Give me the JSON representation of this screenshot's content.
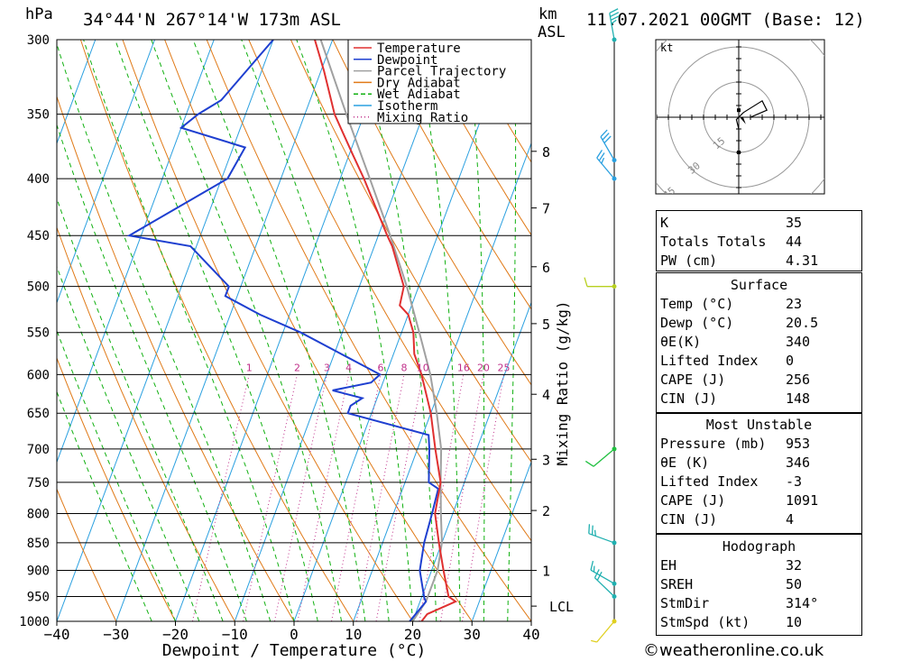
{
  "header": {
    "pressure_unit": "hPa",
    "location": "34°44'N  267°14'W  173m  ASL",
    "height_unit": "km",
    "height_unit2": "ASL",
    "datetime": "11.07.2021  00GMT  (Base: 12)"
  },
  "chart_data": {
    "type": "skew-t log-p",
    "xlabel": "Dewpoint / Temperature (°C)",
    "ylabel_left": "hPa",
    "ylabel_right": "Mixing Ratio (g/kg)",
    "xlim": [
      -40,
      40
    ],
    "ylim_hpa": [
      1000,
      300
    ],
    "x_ticks": [
      -40,
      -30,
      -20,
      -10,
      0,
      10,
      20,
      30,
      40
    ],
    "x_tick_labels": [
      "−40",
      "−30",
      "−20",
      "−10",
      "0",
      "10",
      "20",
      "30",
      "40"
    ],
    "pressure_ticks": [
      300,
      350,
      400,
      450,
      500,
      550,
      600,
      650,
      700,
      750,
      800,
      850,
      900,
      950,
      1000
    ],
    "km_ticks": [
      {
        "km": 8,
        "hpa": 378
      },
      {
        "km": 7,
        "hpa": 425
      },
      {
        "km": 6,
        "hpa": 480
      },
      {
        "km": 5,
        "hpa": 540
      },
      {
        "km": 4,
        "hpa": 625
      },
      {
        "km": 3,
        "hpa": 715
      },
      {
        "km": 2,
        "hpa": 795
      },
      {
        "km": 1,
        "hpa": 900
      }
    ],
    "lcl": {
      "label": "LCL",
      "hpa": 960
    },
    "mixing_ratio_labels": [
      "1",
      "2",
      "3",
      "4",
      "6",
      "8",
      "10",
      "16",
      "20",
      "25"
    ],
    "legend": {
      "position": "top",
      "entries": [
        {
          "name": "Temperature",
          "color": "#e03030",
          "style": "solid"
        },
        {
          "name": "Dewpoint",
          "color": "#1e3fd0",
          "style": "solid"
        },
        {
          "name": "Parcel Trajectory",
          "color": "#a0a0a0",
          "style": "solid"
        },
        {
          "name": "Dry Adiabat",
          "color": "#e07a18",
          "style": "solid"
        },
        {
          "name": "Wet Adiabat",
          "color": "#10b010",
          "style": "dashed"
        },
        {
          "name": "Isotherm",
          "color": "#2aa0e0",
          "style": "solid"
        },
        {
          "name": "Mixing Ratio",
          "color": "#c0308a",
          "style": "dotted"
        }
      ]
    },
    "series": [
      {
        "name": "Temperature",
        "points": [
          [
            1000,
            21.5
          ],
          [
            985,
            22
          ],
          [
            960,
            26
          ],
          [
            950,
            24.5
          ],
          [
            900,
            22
          ],
          [
            860,
            20
          ],
          [
            850,
            19.5
          ],
          [
            800,
            17
          ],
          [
            750,
            16
          ],
          [
            700,
            13
          ],
          [
            650,
            10
          ],
          [
            600,
            6
          ],
          [
            575,
            3.5
          ],
          [
            550,
            2
          ],
          [
            530,
            0
          ],
          [
            520,
            -2
          ],
          [
            500,
            -2.5
          ],
          [
            460,
            -7
          ],
          [
            450,
            -8.5
          ],
          [
            400,
            -16
          ],
          [
            380,
            -19.5
          ],
          [
            350,
            -25
          ],
          [
            320,
            -29.5
          ],
          [
            300,
            -33
          ]
        ]
      },
      {
        "name": "Dewpoint",
        "points": [
          [
            1000,
            19.5
          ],
          [
            960,
            21
          ],
          [
            953,
            20.5
          ],
          [
            900,
            18
          ],
          [
            850,
            17
          ],
          [
            800,
            16.5
          ],
          [
            760,
            16
          ],
          [
            750,
            14
          ],
          [
            700,
            12
          ],
          [
            680,
            11
          ],
          [
            650,
            -4
          ],
          [
            640,
            -4
          ],
          [
            630,
            -2.5
          ],
          [
            620,
            -8
          ],
          [
            610,
            -2
          ],
          [
            600,
            -1
          ],
          [
            550,
            -17
          ],
          [
            530,
            -25
          ],
          [
            510,
            -32
          ],
          [
            500,
            -32
          ],
          [
            460,
            -41
          ],
          [
            450,
            -52
          ],
          [
            400,
            -39
          ],
          [
            375,
            -38
          ],
          [
            360,
            -50
          ],
          [
            350,
            -48
          ],
          [
            340,
            -45
          ],
          [
            300,
            -40
          ]
        ]
      },
      {
        "name": "Parcel Trajectory",
        "points": [
          [
            1000,
            20
          ],
          [
            960,
            21
          ],
          [
            900,
            21
          ],
          [
            850,
            20
          ],
          [
            800,
            18
          ],
          [
            750,
            16
          ],
          [
            700,
            14
          ],
          [
            650,
            11
          ],
          [
            600,
            7.5
          ],
          [
            550,
            3
          ],
          [
            500,
            -2
          ],
          [
            450,
            -8
          ],
          [
            400,
            -15
          ],
          [
            350,
            -23
          ],
          [
            300,
            -32
          ]
        ]
      }
    ],
    "wind_profile": [
      {
        "hpa": 300,
        "dir": 350,
        "kt": 35
      },
      {
        "hpa": 385,
        "dir": 330,
        "kt": 30
      },
      {
        "hpa": 400,
        "dir": 320,
        "kt": 25
      },
      {
        "hpa": 500,
        "dir": 270,
        "kt": 10
      },
      {
        "hpa": 700,
        "dir": 230,
        "kt": 10
      },
      {
        "hpa": 850,
        "dir": 290,
        "kt": 25
      },
      {
        "hpa": 925,
        "dir": 300,
        "kt": 15
      },
      {
        "hpa": 950,
        "dir": 314,
        "kt": 20
      },
      {
        "hpa": 1000,
        "dir": 220,
        "kt": 5
      }
    ],
    "hodograph": {
      "unit": "kt",
      "rings": [
        15,
        30,
        45
      ],
      "ring_labels": [
        "15",
        "30",
        "45"
      ],
      "trace_uv": [
        [
          0,
          -15
        ],
        [
          0,
          -5
        ],
        [
          -1,
          -1
        ],
        [
          2,
          2
        ],
        [
          10,
          7
        ],
        [
          12,
          3
        ],
        [
          5,
          0
        ]
      ],
      "markers_uv": [
        [
          0,
          -15
        ],
        [
          0,
          3
        ]
      ],
      "storm_motion_uv": [
        3,
        -3
      ]
    }
  },
  "indices": {
    "rows": [
      {
        "label": "K",
        "value": "35"
      },
      {
        "label": "Totals Totals",
        "value": "44"
      },
      {
        "label": "PW (cm)",
        "value": "4.31"
      }
    ]
  },
  "surface": {
    "title": "Surface",
    "rows": [
      {
        "label": "Temp (°C)",
        "value": "23"
      },
      {
        "label": "Dewp (°C)",
        "value": "20.5"
      },
      {
        "label": "θE(K)",
        "value": "340"
      },
      {
        "label": "Lifted Index",
        "value": "0"
      },
      {
        "label": "CAPE (J)",
        "value": "256"
      },
      {
        "label": "CIN (J)",
        "value": "148"
      }
    ]
  },
  "most_unstable": {
    "title": "Most Unstable",
    "rows": [
      {
        "label": "Pressure (mb)",
        "value": "953"
      },
      {
        "label": "θE (K)",
        "value": "346"
      },
      {
        "label": "Lifted Index",
        "value": "-3"
      },
      {
        "label": "CAPE (J)",
        "value": "1091"
      },
      {
        "label": "CIN (J)",
        "value": "4"
      }
    ]
  },
  "hodograph_table": {
    "title": "Hodograph",
    "rows": [
      {
        "label": "EH",
        "value": "32"
      },
      {
        "label": "SREH",
        "value": "50"
      },
      {
        "label": "StmDir",
        "value": "314°"
      },
      {
        "label": "StmSpd (kt)",
        "value": "10"
      }
    ]
  },
  "footer": {
    "copyright": "©weatheronline.co.uk"
  }
}
